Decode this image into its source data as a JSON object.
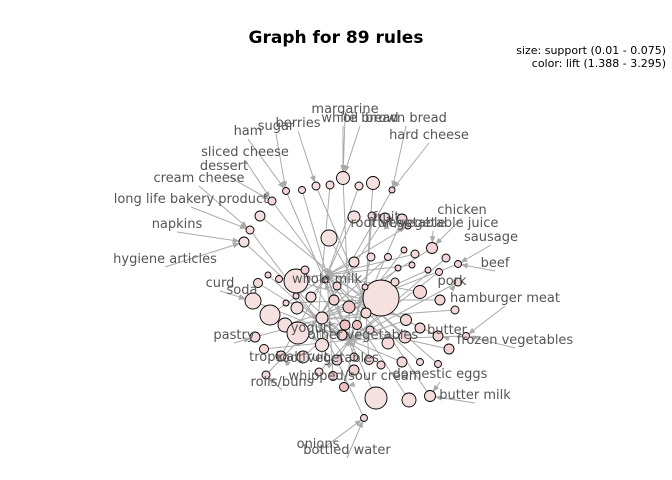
{
  "title": "Graph for 89 rules",
  "legend": {
    "size": "size: support (0.01 - 0.075)",
    "color": "color: lift (1.388 - 3.295)"
  },
  "items": [
    "margarine",
    "oil",
    "white bread",
    "brown bread",
    "berries",
    "sugar",
    "ham",
    "hard cheese",
    "sliced cheese",
    "dessert",
    "cream cheese",
    "long life bakery product",
    "napkins",
    "hygiene articles",
    "curd",
    "soda",
    "pastry",
    "chicken",
    "fruit",
    "root vegetable",
    "fruit/vegetable juice",
    "sausage",
    "beef",
    "pork",
    "hamburger meat",
    "butter",
    "frozen vegetables",
    "domestic eggs",
    "butter milk",
    "whole milk",
    "other vegetables",
    "yogurt",
    "tropical fruit",
    "root vegetables",
    "rolls/buns",
    "whipped/sour cream",
    "onions",
    "bottled water"
  ],
  "colors": {
    "edge": "#aaaaaa",
    "node_low": "#f7e4e4",
    "node_high": "#e7aaaa",
    "label": "#555555"
  }
}
